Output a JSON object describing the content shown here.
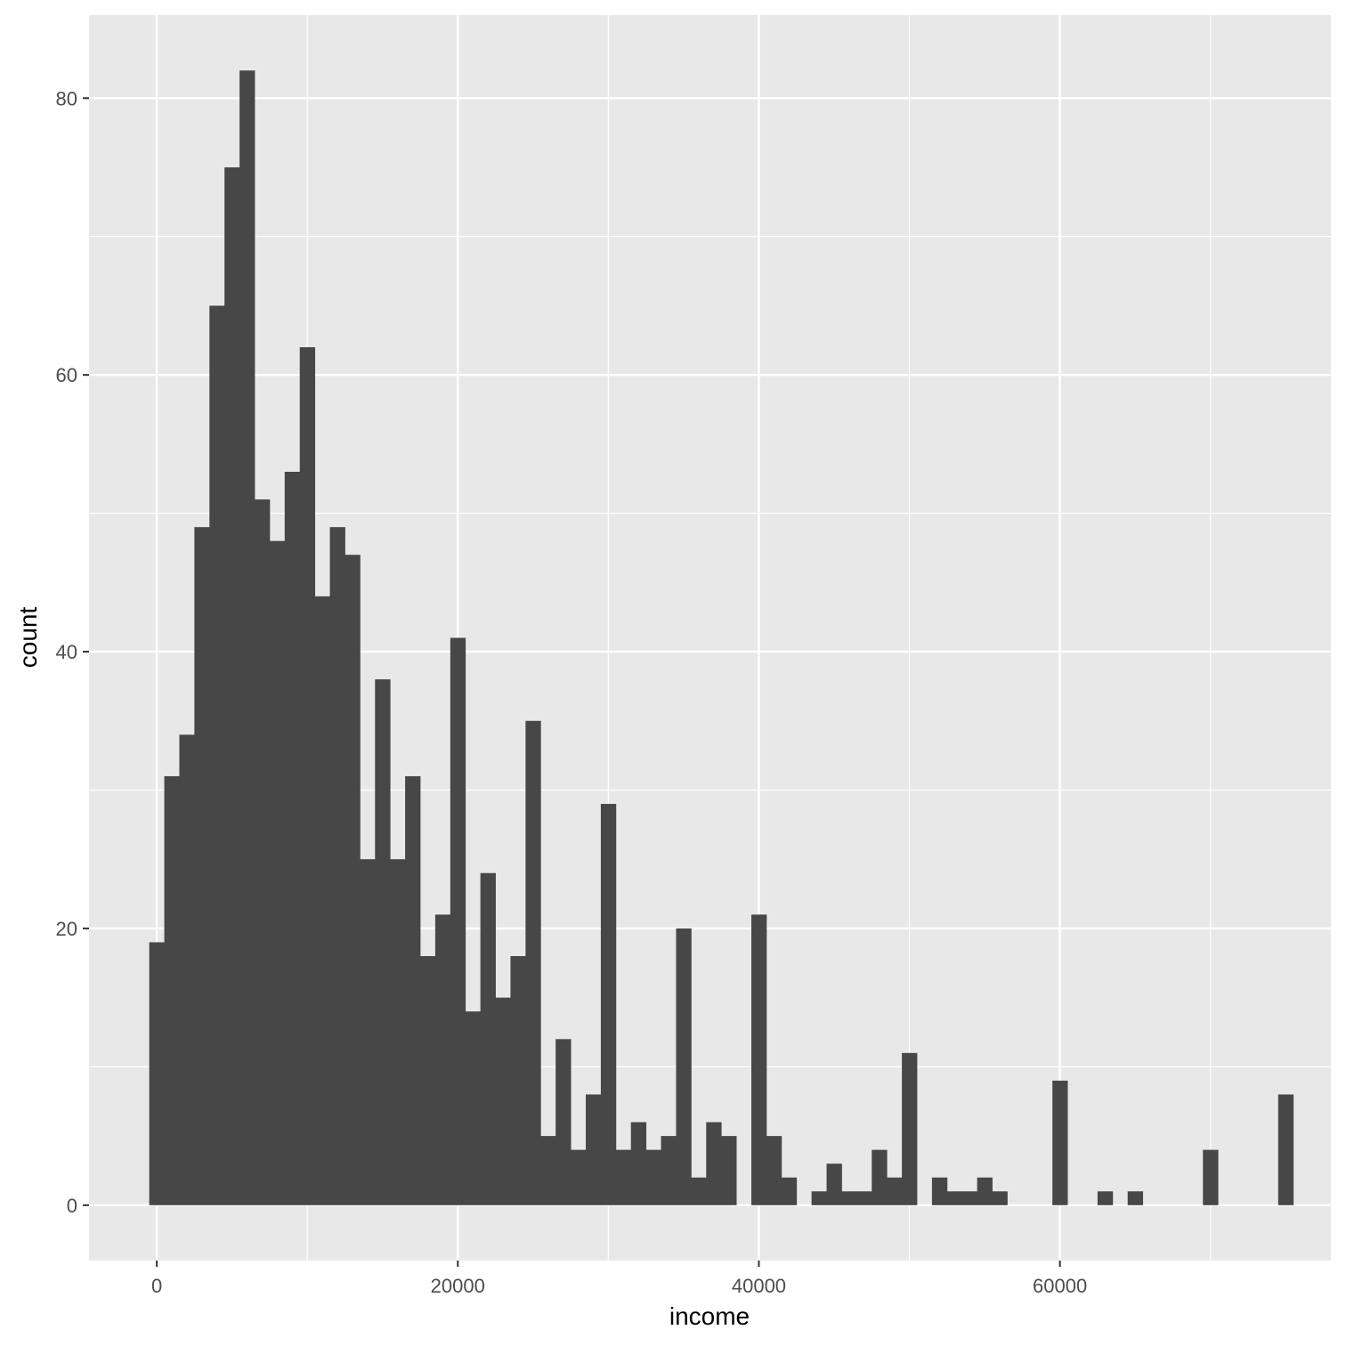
{
  "chart_data": {
    "type": "bar",
    "subtype": "histogram",
    "title": "",
    "xlabel": "income",
    "ylabel": "count",
    "xlim": [
      -4500,
      78000
    ],
    "ylim": [
      -4,
      86
    ],
    "x_ticks": [
      0,
      20000,
      40000,
      60000
    ],
    "x_minor_ticks": [
      10000,
      30000,
      50000,
      70000
    ],
    "y_ticks": [
      0,
      20,
      40,
      60,
      80
    ],
    "y_minor_ticks": [
      10,
      30,
      50,
      70
    ],
    "grid": true,
    "legend": "none",
    "bin_width": 1000,
    "bin_start": -500,
    "values": [
      19,
      31,
      34,
      49,
      65,
      75,
      82,
      51,
      48,
      53,
      62,
      44,
      49,
      47,
      25,
      38,
      25,
      31,
      18,
      21,
      41,
      14,
      24,
      15,
      18,
      35,
      5,
      12,
      4,
      8,
      29,
      4,
      6,
      4,
      5,
      20,
      2,
      6,
      5,
      0,
      21,
      5,
      2,
      0,
      1,
      3,
      1,
      1,
      4,
      2,
      11,
      0,
      2,
      1,
      1,
      2,
      1,
      0,
      0,
      0,
      9,
      0,
      0,
      1,
      0,
      1,
      0,
      0,
      0,
      0,
      4,
      0,
      0,
      0,
      0,
      8
    ],
    "colors": {
      "bar": "#474747",
      "panel": "#e8e8e8",
      "grid": "#ffffff",
      "tick_text": "#4d4d4d",
      "axis_title": "#000000"
    }
  }
}
